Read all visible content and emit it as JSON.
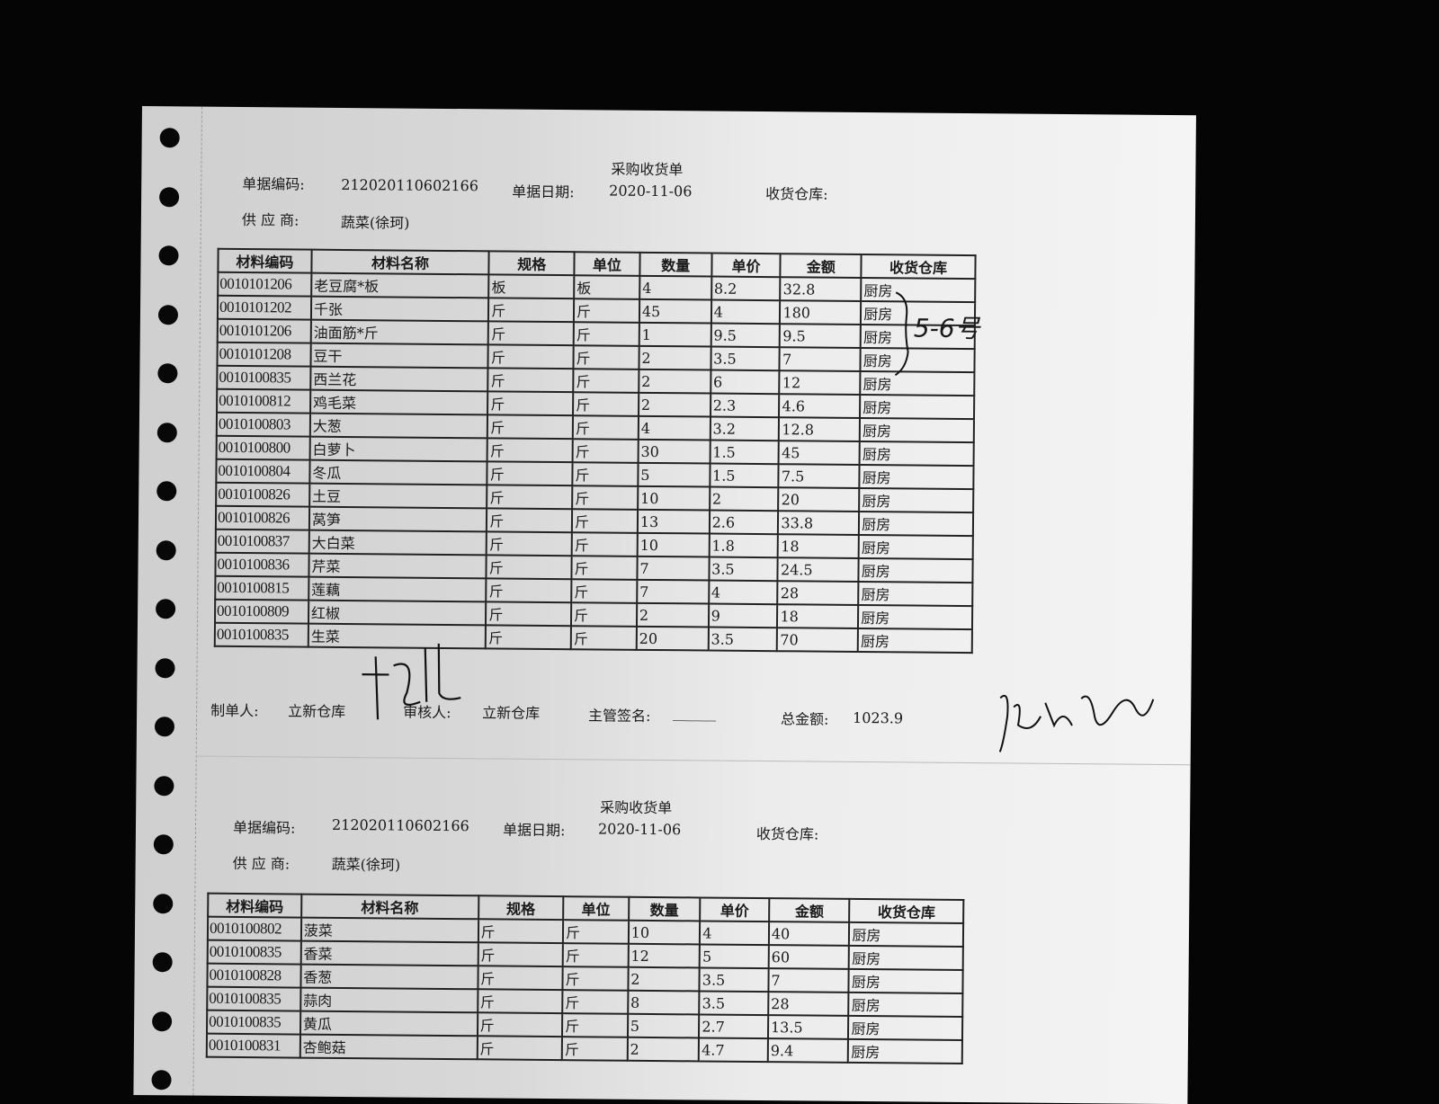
{
  "columns": [
    "材料编码",
    "材料名称",
    "规格",
    "单位",
    "数量",
    "单价",
    "金额",
    "收货仓库"
  ],
  "forms": [
    {
      "title": "采购收货单",
      "doc_no_label": "单据编码:",
      "doc_no": "212020110602166",
      "date_label": "单据日期:",
      "date": "2020-11-06",
      "warehouse_label": "收货仓库:",
      "supplier_label": "供 应 商:",
      "supplier": "蔬菜(徐珂)",
      "rows": [
        [
          "0010101206",
          "老豆腐*板",
          "板",
          "板",
          "4",
          "8.2",
          "32.8",
          "厨房"
        ],
        [
          "0010101202",
          "千张",
          "斤",
          "斤",
          "45",
          "4",
          "180",
          "厨房"
        ],
        [
          "0010101206",
          "油面筋*斤",
          "斤",
          "斤",
          "1",
          "9.5",
          "9.5",
          "厨房"
        ],
        [
          "0010101208",
          "豆干",
          "斤",
          "斤",
          "2",
          "3.5",
          "7",
          "厨房"
        ],
        [
          "0010100835",
          "西兰花",
          "斤",
          "斤",
          "2",
          "6",
          "12",
          "厨房"
        ],
        [
          "0010100812",
          "鸡毛菜",
          "斤",
          "斤",
          "2",
          "2.3",
          "4.6",
          "厨房"
        ],
        [
          "0010100803",
          "大葱",
          "斤",
          "斤",
          "4",
          "3.2",
          "12.8",
          "厨房"
        ],
        [
          "0010100800",
          "白萝卜",
          "斤",
          "斤",
          "30",
          "1.5",
          "45",
          "厨房"
        ],
        [
          "0010100804",
          "冬瓜",
          "斤",
          "斤",
          "5",
          "1.5",
          "7.5",
          "厨房"
        ],
        [
          "0010100826",
          "土豆",
          "斤",
          "斤",
          "10",
          "2",
          "20",
          "厨房"
        ],
        [
          "0010100826",
          "莴笋",
          "斤",
          "斤",
          "13",
          "2.6",
          "33.8",
          "厨房"
        ],
        [
          "0010100837",
          "大白菜",
          "斤",
          "斤",
          "10",
          "1.8",
          "18",
          "厨房"
        ],
        [
          "0010100836",
          "芹菜",
          "斤",
          "斤",
          "7",
          "3.5",
          "24.5",
          "厨房"
        ],
        [
          "0010100815",
          "莲藕",
          "斤",
          "斤",
          "7",
          "4",
          "28",
          "厨房"
        ],
        [
          "0010100809",
          "红椒",
          "斤",
          "斤",
          "2",
          "9",
          "18",
          "厨房"
        ],
        [
          "0010100835",
          "生菜",
          "斤",
          "斤",
          "20",
          "3.5",
          "70",
          "厨房"
        ]
      ],
      "footer": {
        "maker_label": "制单人:",
        "maker": "立新仓库",
        "reviewer_label": "审核人:",
        "reviewer": "立新仓库",
        "supervisor_label": "主管签名:",
        "supervisor_blank": "______",
        "total_label": "总金额:",
        "total": "1023.9"
      },
      "handwritten_note": "5-6号"
    },
    {
      "title": "采购收货单",
      "doc_no_label": "单据编码:",
      "doc_no": "212020110602166",
      "date_label": "单据日期:",
      "date": "2020-11-06",
      "warehouse_label": "收货仓库:",
      "supplier_label": "供 应 商:",
      "supplier": "蔬菜(徐珂)",
      "rows": [
        [
          "0010100802",
          "菠菜",
          "斤",
          "斤",
          "10",
          "4",
          "40",
          "厨房"
        ],
        [
          "0010100835",
          "香菜",
          "斤",
          "斤",
          "12",
          "5",
          "60",
          "厨房"
        ],
        [
          "0010100828",
          "香葱",
          "斤",
          "斤",
          "2",
          "3.5",
          "7",
          "厨房"
        ],
        [
          "0010100835",
          "蒜肉",
          "斤",
          "斤",
          "8",
          "3.5",
          "28",
          "厨房"
        ],
        [
          "0010100835",
          "黄瓜",
          "斤",
          "斤",
          "5",
          "2.7",
          "13.5",
          "厨房"
        ],
        [
          "0010100831",
          "杏鲍菇",
          "斤",
          "斤",
          "2",
          "4.7",
          "9.4",
          "厨房"
        ]
      ]
    }
  ]
}
